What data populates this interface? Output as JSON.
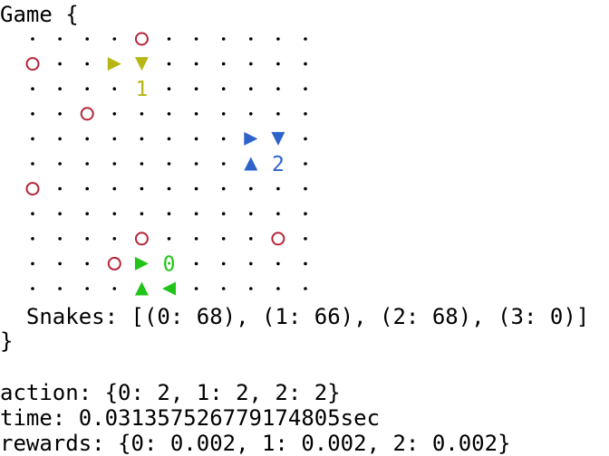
{
  "header": {
    "text": "Game {"
  },
  "footer": {
    "close": "}"
  },
  "board": {
    "cols": 11,
    "rows": 11,
    "colors": {
      "dot": "#000000",
      "food": "#b5253a",
      "snake0": "#22c41a",
      "snake1": "#b6b614",
      "snake2": "#2d63c9"
    },
    "food": [
      [
        4,
        0
      ],
      [
        0,
        1
      ],
      [
        2,
        3
      ],
      [
        0,
        6
      ],
      [
        4,
        8
      ],
      [
        9,
        8
      ],
      [
        3,
        9
      ]
    ],
    "snakes": [
      {
        "id": "0",
        "color_key": "snake0",
        "label": "0",
        "label_cell": [
          5,
          9
        ],
        "segments": [
          {
            "cell": [
              4,
              9
            ],
            "dir": "right"
          },
          {
            "cell": [
              4,
              10
            ],
            "dir": "up"
          },
          {
            "cell": [
              5,
              10
            ],
            "dir": "left"
          }
        ]
      },
      {
        "id": "1",
        "color_key": "snake1",
        "label": "1",
        "label_cell": [
          4,
          2
        ],
        "segments": [
          {
            "cell": [
              3,
              1
            ],
            "dir": "right"
          },
          {
            "cell": [
              4,
              1
            ],
            "dir": "down"
          }
        ]
      },
      {
        "id": "2",
        "color_key": "snake2",
        "label": "2",
        "label_cell": [
          9,
          5
        ],
        "segments": [
          {
            "cell": [
              8,
              4
            ],
            "dir": "right"
          },
          {
            "cell": [
              9,
              4
            ],
            "dir": "down"
          },
          {
            "cell": [
              8,
              5
            ],
            "dir": "up"
          }
        ]
      }
    ]
  },
  "snakes_line": "  Snakes: [(0: 68), (1: 66), (2: 68), (3: 0)]",
  "action_line": "action: {0: 2, 1: 2, 2: 2}",
  "time_line": "time: 0.031357526779174805sec",
  "rewards_line": "rewards: {0: 0.002, 1: 0.002, 2: 0.002}"
}
